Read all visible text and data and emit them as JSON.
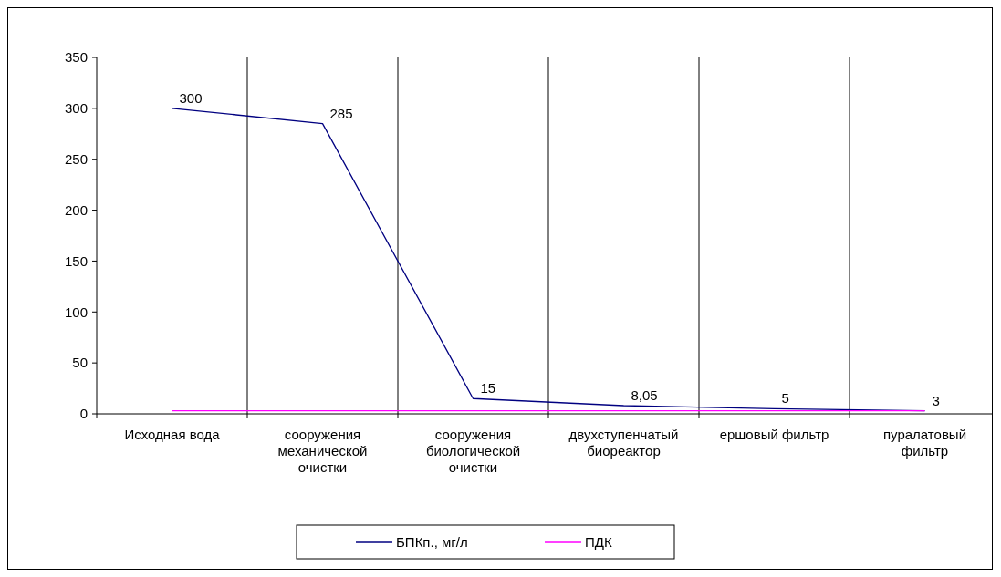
{
  "chart_data": {
    "type": "line",
    "categories": [
      "Исходная вода",
      "сооружения механической очистки",
      "сооружения биологической очистки",
      "двухступенчатый биореактор",
      "ершовый фильтр",
      "пуралатовый фильтр"
    ],
    "series": [
      {
        "name": "БПКп., мг/л",
        "color": "#000080",
        "values": [
          300,
          285,
          15,
          8.05,
          5,
          3
        ],
        "value_labels": [
          "300",
          "285",
          "15",
          "8,05",
          "5",
          "3"
        ]
      },
      {
        "name": "ПДК",
        "color": "#ff00ff",
        "values": [
          3,
          3,
          3,
          3,
          3,
          3
        ]
      }
    ],
    "ylim": [
      0,
      350
    ],
    "yticks": [
      0,
      50,
      100,
      150,
      200,
      250,
      300,
      350
    ],
    "grid": "x",
    "legend": "bottom",
    "marker": "none"
  }
}
